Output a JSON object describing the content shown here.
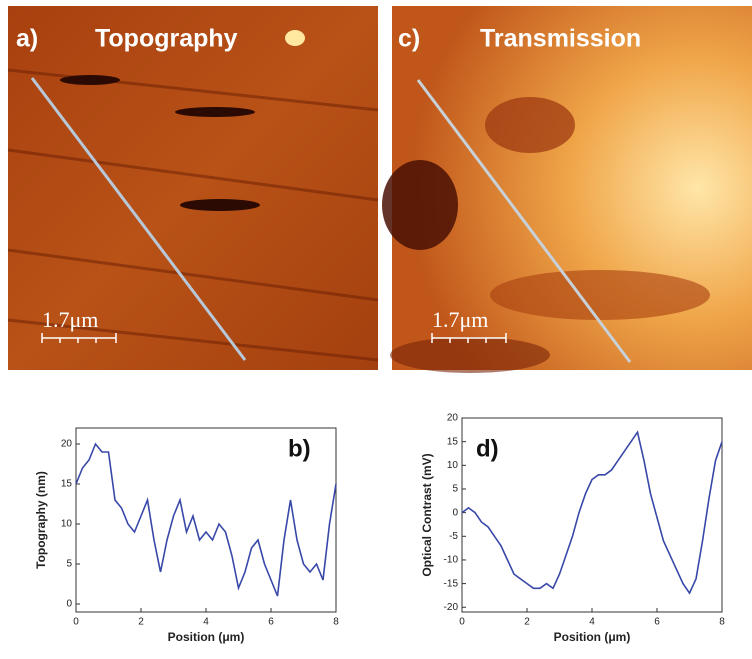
{
  "images": [
    {
      "label": "a)",
      "title": "Topography",
      "scale_bar": "1.7μm"
    },
    {
      "label": "c)",
      "title": "Transmission",
      "scale_bar": "1.7μm"
    }
  ],
  "chart_data": [
    {
      "type": "line",
      "panel_label": "b)",
      "x_label": "Position (μm)",
      "y_label": "Topography (nm)",
      "color": "#3848a8",
      "x": [
        0,
        0.2,
        0.4,
        0.6,
        0.8,
        1.0,
        1.2,
        1.4,
        1.6,
        1.8,
        2.0,
        2.2,
        2.4,
        2.6,
        2.8,
        3.0,
        3.2,
        3.4,
        3.6,
        3.8,
        4.0,
        4.2,
        4.4,
        4.6,
        4.8,
        5.0,
        5.2,
        5.4,
        5.6,
        5.8,
        6.0,
        6.2,
        6.4,
        6.6,
        6.8,
        7.0,
        7.2,
        7.4,
        7.6,
        7.8,
        8.0
      ],
      "values": [
        15,
        17,
        18,
        20,
        19,
        19,
        13,
        12,
        10,
        9,
        11,
        13,
        8,
        4,
        8,
        11,
        13,
        9,
        11,
        8,
        9,
        8,
        10,
        9,
        6,
        2,
        4,
        7,
        8,
        5,
        3,
        1,
        8,
        13,
        8,
        5,
        4,
        5,
        3,
        10,
        15
      ],
      "xlim": [
        0,
        8
      ],
      "xticks": [
        0,
        2,
        4,
        6,
        8
      ],
      "ylim": [
        -1,
        22
      ],
      "yticks": [
        0,
        5,
        10,
        15,
        20
      ]
    },
    {
      "type": "line",
      "panel_label": "d)",
      "x_label": "Position (μm)",
      "y_label": "Optical Contrast (mV)",
      "color": "#3848a8",
      "x": [
        0,
        0.2,
        0.4,
        0.6,
        0.8,
        1.0,
        1.2,
        1.4,
        1.6,
        1.8,
        2.0,
        2.2,
        2.4,
        2.6,
        2.8,
        3.0,
        3.2,
        3.4,
        3.6,
        3.8,
        4.0,
        4.2,
        4.4,
        4.6,
        4.8,
        5.0,
        5.2,
        5.4,
        5.6,
        5.8,
        6.0,
        6.2,
        6.4,
        6.6,
        6.8,
        7.0,
        7.2,
        7.4,
        7.6,
        7.8,
        8.0
      ],
      "values": [
        0,
        1,
        0,
        -2,
        -3,
        -5,
        -7,
        -10,
        -13,
        -14,
        -15,
        -16,
        -16,
        -15,
        -16,
        -13,
        -9,
        -5,
        0,
        4,
        7,
        8,
        8,
        9,
        11,
        13,
        15,
        17,
        11,
        4,
        -1,
        -6,
        -9,
        -12,
        -15,
        -17,
        -14,
        -6,
        3,
        11,
        15
      ],
      "xlim": [
        0,
        8
      ],
      "xticks": [
        0,
        2,
        4,
        6,
        8
      ],
      "ylim": [
        -21,
        20
      ],
      "yticks": [
        -20,
        -15,
        -10,
        -5,
        0,
        5,
        10,
        15,
        20
      ]
    }
  ]
}
